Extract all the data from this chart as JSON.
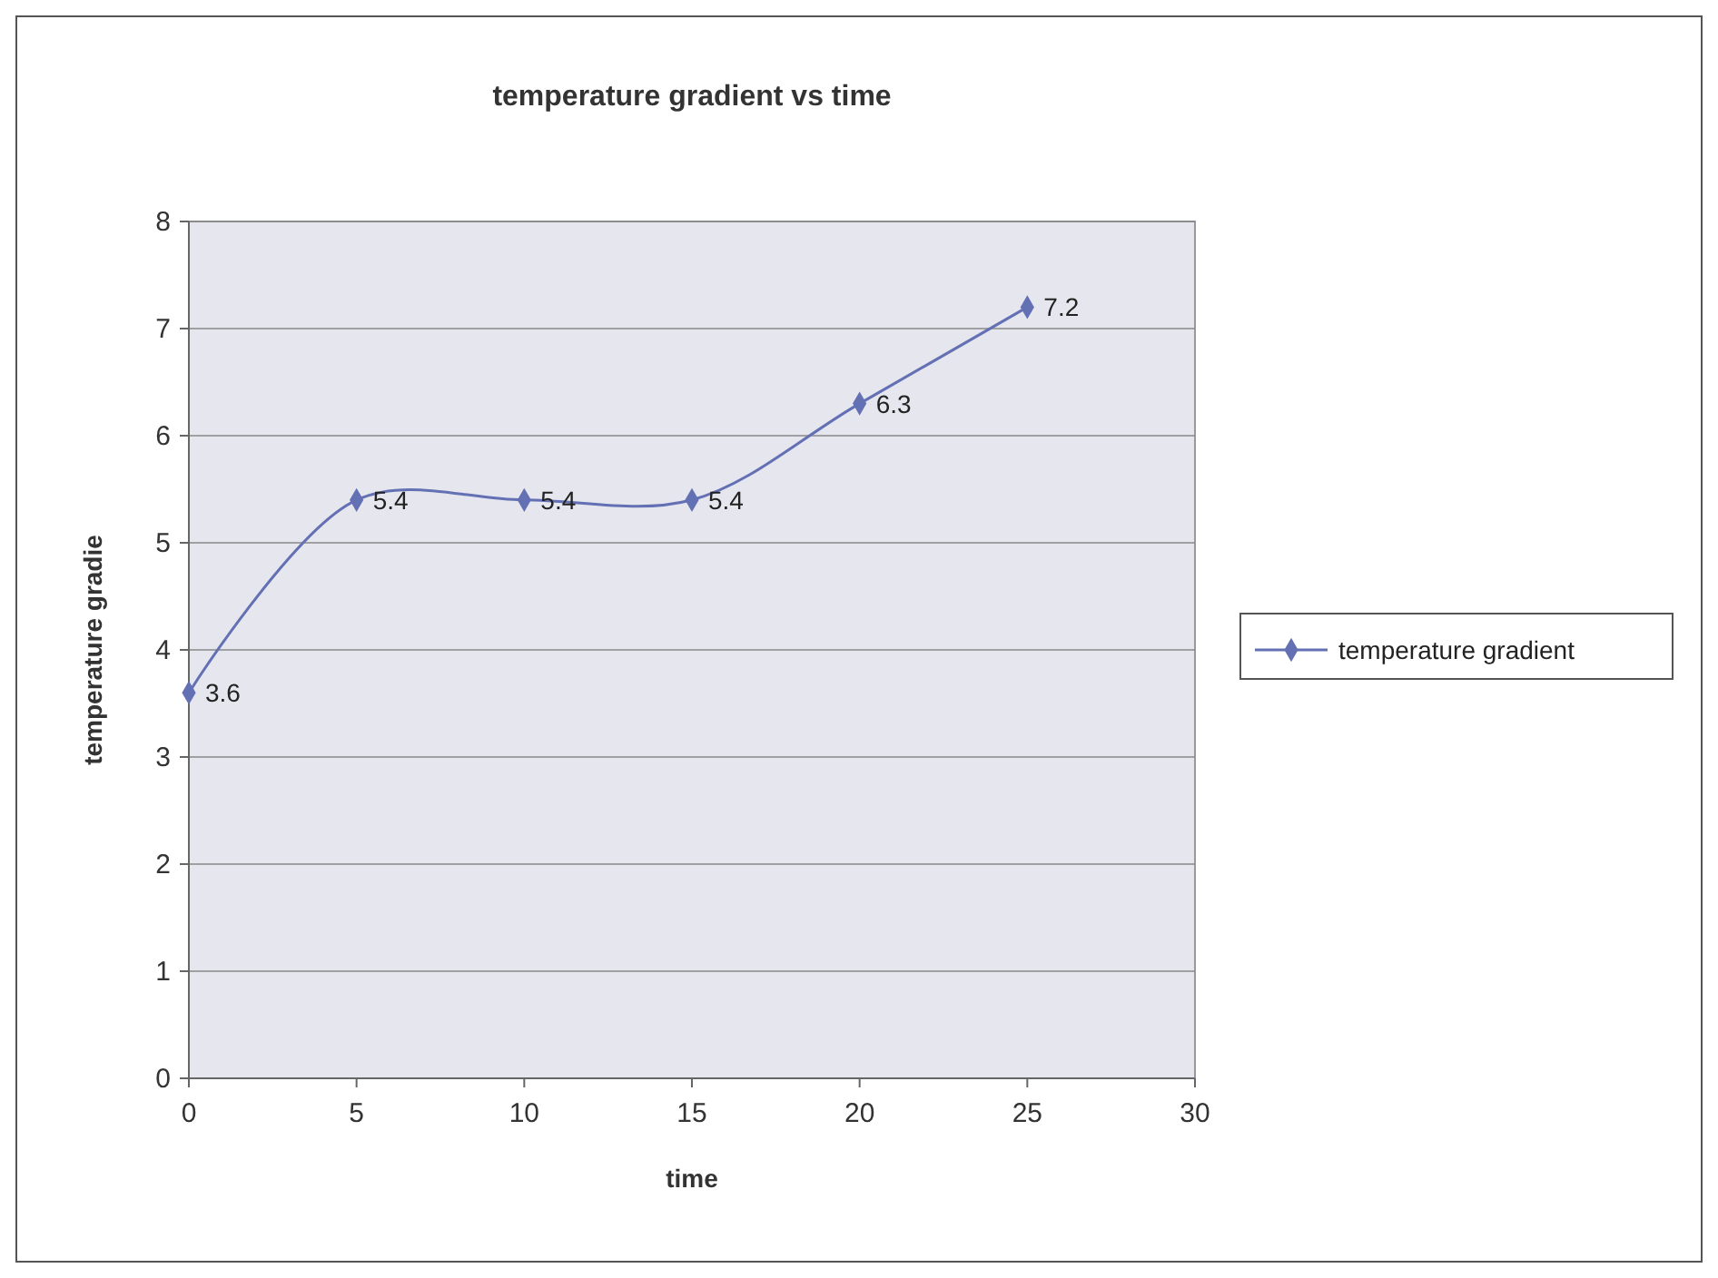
{
  "chart_data": {
    "type": "line",
    "title": "temperature gradient vs time",
    "xlabel": "time",
    "ylabel": "temperature gradie",
    "x": [
      0,
      5,
      10,
      15,
      20,
      25
    ],
    "series": [
      {
        "name": "temperature gradient",
        "color": "#6470b4",
        "values": [
          3.6,
          5.4,
          5.4,
          5.4,
          6.3,
          7.2
        ]
      }
    ],
    "xlim": [
      0,
      30
    ],
    "xticks": [
      0,
      5,
      10,
      15,
      20,
      25,
      30
    ],
    "ylim": [
      0,
      8
    ],
    "yticks": [
      0,
      1,
      2,
      3,
      4,
      5,
      6,
      7,
      8
    ],
    "grid": "y",
    "legend": "right",
    "marker": "diamond",
    "line_style": "solid",
    "data_labels": true
  }
}
